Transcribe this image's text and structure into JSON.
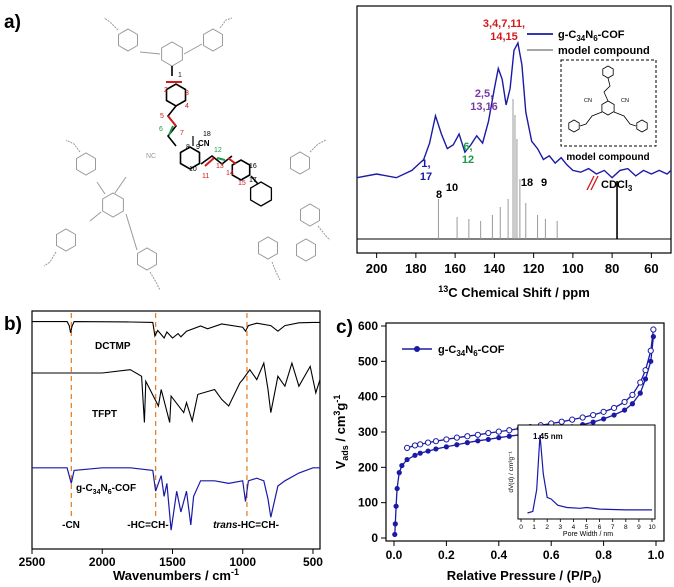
{
  "panels": {
    "a": "a)",
    "b": "b)",
    "c": "c)"
  },
  "colors": {
    "cof": "#1a1aa6",
    "black": "#000000",
    "gray": "#9a9a9a",
    "red": "#d21a1a",
    "purple": "#7a3aa0",
    "green": "#1a9a4a",
    "orange": "#e8822a",
    "hilite": "#222222"
  },
  "panel_a": {
    "legend": {
      "cof": "g-C34N6-COF",
      "model": "model compound"
    },
    "inset_label": "model compound",
    "cdcl3": "CDCl3",
    "peak_labels": {
      "p1": {
        "l1": "3,4,7,11,",
        "l2": "14,15"
      },
      "p2": {
        "l1": "2,5,",
        "l2": "13,16"
      },
      "p3": {
        "l1": "6,",
        "l2": "12"
      },
      "p4": {
        "l1": "1,",
        "l2": "17"
      },
      "p5": "8",
      "p6": "10",
      "p7": "18",
      "p8": "9"
    },
    "atom_numbers": {
      "n1": "1",
      "n2": "2",
      "n3": "3",
      "n4": "4",
      "n5": "5",
      "n6": "6",
      "n7": "7",
      "n8": "8",
      "n9": "9",
      "n10": "10",
      "n11": "11",
      "n12": "12",
      "n13": "13",
      "n14": "14",
      "n15": "15",
      "n16": "16",
      "n17": "17",
      "n18": "18"
    },
    "cn_labels": {
      "cn1": "CN",
      "nc1": "NC"
    }
  },
  "panel_b": {
    "annotations": {
      "cn": "-CN",
      "hc": "-HC=CH-",
      "trans": "trans-HC=CH-"
    },
    "trace_labels": {
      "dctmp": "DCTMP",
      "tfpt": "TFPT",
      "cof": "g-C34N6-COF"
    }
  },
  "panel_c": {
    "legend": "g-C34N6-COF",
    "inset": {
      "annotation": "1.45 nm",
      "xlabel": "Pore Width / nm",
      "ylabel": "dV(d) / cm³g⁻¹"
    }
  },
  "chart_data": [
    {
      "panel": "a",
      "type": "line",
      "xlabel": "13C Chemical Shift / ppm",
      "x_reversed": true,
      "xlim": [
        210,
        50
      ],
      "xticks": [
        200,
        180,
        160,
        140,
        120,
        100,
        80,
        60
      ],
      "series": [
        {
          "name": "g-C34N6-COF",
          "x": [
            210,
            200,
            190,
            182,
            176,
            173,
            170,
            167,
            164,
            161,
            158,
            155,
            152,
            149,
            146,
            143,
            140,
            138,
            136,
            134,
            132,
            130,
            128,
            126,
            124,
            121,
            118,
            115,
            112,
            109,
            106,
            103,
            100,
            96,
            92,
            88,
            84,
            80,
            76,
            72,
            68,
            64,
            60,
            56,
            52,
            50
          ],
          "y": [
            0.26,
            0.28,
            0.26,
            0.3,
            0.36,
            0.45,
            0.6,
            0.5,
            0.42,
            0.44,
            0.5,
            0.4,
            0.44,
            0.49,
            0.45,
            0.57,
            0.75,
            0.86,
            0.8,
            0.66,
            0.75,
            0.96,
            1.0,
            0.88,
            0.62,
            0.46,
            0.42,
            0.36,
            0.38,
            0.34,
            0.37,
            0.33,
            0.3,
            0.29,
            0.31,
            0.28,
            0.3,
            0.26,
            0.3,
            0.31,
            0.27,
            0.3,
            0.28,
            0.3,
            0.28,
            0.3
          ]
        },
        {
          "name": "model compound",
          "sticks": [
            [
              168.5,
              0.2
            ],
            [
              159,
              0.11
            ],
            [
              153,
              0.1
            ],
            [
              147,
              0.09
            ],
            [
              141,
              0.12
            ],
            [
              137,
              0.16
            ],
            [
              133,
              0.2
            ],
            [
              130.5,
              0.7
            ],
            [
              129.5,
              0.62
            ],
            [
              128.5,
              0.5
            ],
            [
              127,
              0.3
            ],
            [
              124,
              0.18
            ],
            [
              118,
              0.12
            ],
            [
              114,
              0.1
            ],
            [
              108,
              0.09
            ],
            [
              77.5,
              0.4
            ]
          ]
        }
      ]
    },
    {
      "panel": "b",
      "type": "line",
      "xlabel": "Wavenumbers / cm-1",
      "x_reversed": true,
      "xlim": [
        2500,
        450
      ],
      "xticks": [
        2500,
        2000,
        1500,
        1000,
        500
      ],
      "series": [
        {
          "name": "DCTMP",
          "x": [
            2500,
            2250,
            2235,
            2225,
            2215,
            2200,
            1800,
            1640,
            1625,
            1605,
            1560,
            1540,
            1500,
            1460,
            1440,
            1400,
            1300,
            1250,
            1150,
            1000,
            980,
            960,
            900,
            800,
            750,
            700,
            600,
            500,
            450
          ],
          "y": [
            0.96,
            0.96,
            0.86,
            0.68,
            0.84,
            0.96,
            0.95,
            0.94,
            0.6,
            0.74,
            0.55,
            0.7,
            0.55,
            0.66,
            0.58,
            0.72,
            0.85,
            0.78,
            0.9,
            0.82,
            0.72,
            0.86,
            0.92,
            0.86,
            0.72,
            0.86,
            0.93,
            0.94,
            0.94
          ]
        },
        {
          "name": "TFPT",
          "x": [
            2500,
            2000,
            1800,
            1720,
            1700,
            1690,
            1600,
            1580,
            1520,
            1510,
            1420,
            1400,
            1360,
            1320,
            1200,
            1150,
            1100,
            1020,
            1000,
            950,
            900,
            850,
            820,
            800,
            750,
            700,
            650,
            600,
            520,
            480,
            450
          ],
          "y": [
            0.6,
            0.6,
            0.62,
            0.58,
            0.3,
            0.55,
            0.4,
            0.5,
            0.3,
            0.46,
            0.36,
            0.42,
            0.31,
            0.47,
            0.5,
            0.44,
            0.4,
            0.54,
            0.56,
            0.62,
            0.56,
            0.66,
            0.5,
            0.36,
            0.58,
            0.52,
            0.66,
            0.52,
            0.64,
            0.48,
            0.56
          ]
        },
        {
          "name": "g-C34N6-COF",
          "x": [
            2500,
            2250,
            2230,
            2220,
            2200,
            2000,
            1800,
            1640,
            1620,
            1580,
            1560,
            1540,
            1510,
            1470,
            1440,
            1400,
            1370,
            1350,
            1300,
            1200,
            1100,
            1000,
            980,
            960,
            900,
            850,
            820,
            800,
            750,
            700,
            600,
            500,
            450
          ],
          "y": [
            0.27,
            0.27,
            0.23,
            0.21,
            0.26,
            0.27,
            0.27,
            0.26,
            0.18,
            0.24,
            0.16,
            0.21,
            0.03,
            0.18,
            0.1,
            0.18,
            0.05,
            0.16,
            0.22,
            0.22,
            0.21,
            0.22,
            0.14,
            0.22,
            0.23,
            0.22,
            0.15,
            0.08,
            0.2,
            0.22,
            0.25,
            0.27,
            0.27
          ]
        }
      ],
      "markers": [
        2220,
        1620,
        970
      ]
    },
    {
      "panel": "c",
      "type": "line",
      "xlabel": "Relative Pressure / (P/P0)",
      "ylabel": "Vads / cm3g-1",
      "xlim": [
        0,
        1.0
      ],
      "ylim": [
        0,
        600
      ],
      "xticks": [
        0.0,
        0.2,
        0.4,
        0.6,
        0.8,
        1.0
      ],
      "yticks": [
        0,
        100,
        200,
        300,
        400,
        500,
        600
      ],
      "series": [
        {
          "name": "adsorption",
          "x": [
            0.003,
            0.005,
            0.008,
            0.012,
            0.02,
            0.03,
            0.05,
            0.08,
            0.1,
            0.13,
            0.16,
            0.2,
            0.24,
            0.28,
            0.32,
            0.36,
            0.4,
            0.44,
            0.48,
            0.52,
            0.56,
            0.6,
            0.64,
            0.68,
            0.72,
            0.76,
            0.8,
            0.84,
            0.88,
            0.91,
            0.94,
            0.96,
            0.98,
            0.99
          ],
          "y": [
            10,
            40,
            90,
            140,
            185,
            205,
            222,
            234,
            240,
            246,
            252,
            258,
            264,
            270,
            275,
            279,
            284,
            288,
            292,
            296,
            300,
            305,
            310,
            315,
            321,
            328,
            337,
            348,
            362,
            380,
            410,
            450,
            500,
            570
          ]
        },
        {
          "name": "desorption",
          "x": [
            0.99,
            0.98,
            0.96,
            0.94,
            0.91,
            0.88,
            0.84,
            0.8,
            0.76,
            0.72,
            0.68,
            0.64,
            0.6,
            0.56,
            0.52,
            0.48,
            0.44,
            0.4,
            0.36,
            0.32,
            0.28,
            0.24,
            0.2,
            0.16,
            0.13,
            0.1,
            0.08,
            0.05
          ],
          "y": [
            590,
            530,
            475,
            440,
            405,
            385,
            368,
            357,
            348,
            341,
            335,
            329,
            324,
            319,
            314,
            310,
            305,
            301,
            297,
            292,
            288,
            284,
            279,
            274,
            270,
            265,
            262,
            255
          ]
        }
      ],
      "inset": {
        "type": "line",
        "xlim": [
          0,
          10
        ],
        "xticks": [
          0,
          1,
          2,
          3,
          4,
          5,
          6,
          7,
          8,
          9,
          10
        ],
        "series": [
          {
            "name": "pore size distribution",
            "x": [
              0.5,
              0.9,
              1.2,
              1.45,
              1.7,
              2.0,
              2.3,
              2.8,
              3.5,
              4.5,
              5,
              6,
              8,
              10
            ],
            "y": [
              0.0,
              0.02,
              0.3,
              1.0,
              0.5,
              0.2,
              0.18,
              0.1,
              0.07,
              0.06,
              0.07,
              0.05,
              0.04,
              0.04
            ]
          }
        ]
      }
    }
  ]
}
